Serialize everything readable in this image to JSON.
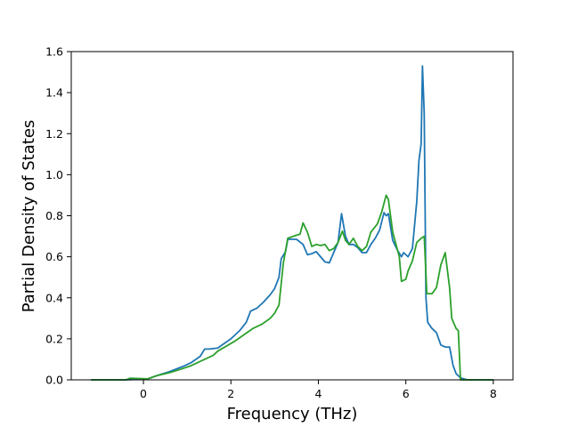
{
  "chart_data": {
    "type": "line",
    "title": "",
    "xlabel": "Frequency (THz)",
    "ylabel": "Partial Density of States",
    "xlim": [
      -1.65,
      8.45
    ],
    "ylim": [
      0,
      1.6
    ],
    "xticks": [
      0,
      2,
      4,
      6,
      8
    ],
    "yticks": [
      0.0,
      0.2,
      0.4,
      0.6,
      0.8,
      1.0,
      1.2,
      1.4,
      1.6
    ],
    "grid": false,
    "legend": "none",
    "series": [
      {
        "color": "#1f77b4",
        "points": [
          [
            -1.2,
            0.0
          ],
          [
            -0.4,
            0.0
          ],
          [
            0.1,
            0.005
          ],
          [
            0.3,
            0.02
          ],
          [
            0.6,
            0.04
          ],
          [
            0.9,
            0.065
          ],
          [
            1.1,
            0.085
          ],
          [
            1.3,
            0.115
          ],
          [
            1.4,
            0.15
          ],
          [
            1.5,
            0.15
          ],
          [
            1.7,
            0.155
          ],
          [
            1.8,
            0.17
          ],
          [
            2.0,
            0.2
          ],
          [
            2.2,
            0.24
          ],
          [
            2.35,
            0.28
          ],
          [
            2.45,
            0.335
          ],
          [
            2.6,
            0.35
          ],
          [
            2.75,
            0.38
          ],
          [
            2.9,
            0.415
          ],
          [
            3.0,
            0.445
          ],
          [
            3.1,
            0.5
          ],
          [
            3.15,
            0.59
          ],
          [
            3.25,
            0.625
          ],
          [
            3.3,
            0.685
          ],
          [
            3.5,
            0.685
          ],
          [
            3.65,
            0.66
          ],
          [
            3.75,
            0.61
          ],
          [
            3.85,
            0.615
          ],
          [
            3.95,
            0.625
          ],
          [
            4.05,
            0.6
          ],
          [
            4.15,
            0.575
          ],
          [
            4.25,
            0.57
          ],
          [
            4.35,
            0.62
          ],
          [
            4.45,
            0.67
          ],
          [
            4.53,
            0.81
          ],
          [
            4.62,
            0.7
          ],
          [
            4.7,
            0.66
          ],
          [
            4.8,
            0.66
          ],
          [
            4.9,
            0.645
          ],
          [
            5.0,
            0.62
          ],
          [
            5.1,
            0.62
          ],
          [
            5.2,
            0.66
          ],
          [
            5.3,
            0.69
          ],
          [
            5.4,
            0.73
          ],
          [
            5.5,
            0.815
          ],
          [
            5.55,
            0.8
          ],
          [
            5.6,
            0.81
          ],
          [
            5.7,
            0.68
          ],
          [
            5.8,
            0.635
          ],
          [
            5.9,
            0.6
          ],
          [
            5.95,
            0.62
          ],
          [
            6.05,
            0.6
          ],
          [
            6.15,
            0.64
          ],
          [
            6.25,
            0.87
          ],
          [
            6.3,
            1.07
          ],
          [
            6.35,
            1.15
          ],
          [
            6.38,
            1.53
          ],
          [
            6.42,
            1.3
          ],
          [
            6.46,
            0.4
          ],
          [
            6.5,
            0.28
          ],
          [
            6.6,
            0.25
          ],
          [
            6.7,
            0.23
          ],
          [
            6.8,
            0.17
          ],
          [
            6.9,
            0.16
          ],
          [
            7.0,
            0.16
          ],
          [
            7.08,
            0.07
          ],
          [
            7.15,
            0.03
          ],
          [
            7.25,
            0.01
          ],
          [
            7.4,
            0.0
          ],
          [
            8.0,
            0.0
          ]
        ]
      },
      {
        "color": "#2ca02c",
        "points": [
          [
            -1.2,
            0.0
          ],
          [
            -0.4,
            0.0
          ],
          [
            -0.3,
            0.008
          ],
          [
            0.1,
            0.005
          ],
          [
            0.3,
            0.02
          ],
          [
            0.6,
            0.035
          ],
          [
            0.9,
            0.055
          ],
          [
            1.1,
            0.07
          ],
          [
            1.3,
            0.09
          ],
          [
            1.4,
            0.1
          ],
          [
            1.6,
            0.12
          ],
          [
            1.7,
            0.14
          ],
          [
            1.9,
            0.165
          ],
          [
            2.1,
            0.19
          ],
          [
            2.3,
            0.22
          ],
          [
            2.5,
            0.25
          ],
          [
            2.7,
            0.27
          ],
          [
            2.9,
            0.3
          ],
          [
            3.0,
            0.325
          ],
          [
            3.1,
            0.365
          ],
          [
            3.2,
            0.57
          ],
          [
            3.3,
            0.69
          ],
          [
            3.5,
            0.705
          ],
          [
            3.58,
            0.71
          ],
          [
            3.65,
            0.765
          ],
          [
            3.75,
            0.72
          ],
          [
            3.85,
            0.65
          ],
          [
            3.95,
            0.66
          ],
          [
            4.05,
            0.655
          ],
          [
            4.15,
            0.66
          ],
          [
            4.25,
            0.63
          ],
          [
            4.35,
            0.64
          ],
          [
            4.45,
            0.67
          ],
          [
            4.55,
            0.725
          ],
          [
            4.62,
            0.68
          ],
          [
            4.7,
            0.66
          ],
          [
            4.8,
            0.69
          ],
          [
            4.9,
            0.65
          ],
          [
            5.0,
            0.63
          ],
          [
            5.1,
            0.65
          ],
          [
            5.2,
            0.72
          ],
          [
            5.35,
            0.76
          ],
          [
            5.45,
            0.82
          ],
          [
            5.55,
            0.9
          ],
          [
            5.6,
            0.88
          ],
          [
            5.7,
            0.72
          ],
          [
            5.8,
            0.64
          ],
          [
            5.85,
            0.6
          ],
          [
            5.9,
            0.48
          ],
          [
            6.0,
            0.49
          ],
          [
            6.05,
            0.53
          ],
          [
            6.15,
            0.58
          ],
          [
            6.25,
            0.67
          ],
          [
            6.35,
            0.69
          ],
          [
            6.42,
            0.7
          ],
          [
            6.48,
            0.42
          ],
          [
            6.6,
            0.42
          ],
          [
            6.7,
            0.45
          ],
          [
            6.8,
            0.56
          ],
          [
            6.9,
            0.62
          ],
          [
            7.0,
            0.45
          ],
          [
            7.05,
            0.3
          ],
          [
            7.15,
            0.25
          ],
          [
            7.2,
            0.24
          ],
          [
            7.25,
            0.0
          ],
          [
            8.0,
            0.0
          ]
        ]
      }
    ]
  }
}
